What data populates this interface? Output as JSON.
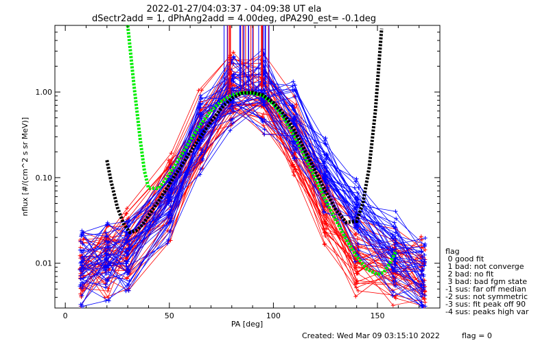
{
  "header": {
    "title": "2022-01-27/04:03:37 - 04:09:38 UT ela",
    "subtitle": "dSectr2add = 1, dPhAng2add = 4.00deg, dPA290_est=  -0.1deg"
  },
  "footer": {
    "created": "Created: Wed Mar 09 03:15:10 2022",
    "flag": "flag = 0"
  },
  "legend": {
    "title": "flag",
    "items": [
      " 0 good fit",
      " 1 bad: not converge",
      " 2 bad: no fit",
      " 3 bad: bad fgm state",
      "-1 sus: far off median",
      "-2 sus: not symmetric",
      "-3 sus: fit peak off 90",
      "-4 sus: peaks high var"
    ]
  },
  "colors": {
    "red": "#ff0000",
    "blue": "#0000ff",
    "green": "#00ee00",
    "black": "#000000"
  },
  "chart_data": {
    "type": "line",
    "title": "2022-01-27/04:03:37 - 04:09:38 UT ela",
    "xlabel": "PA [deg]",
    "ylabel": "nflux [#/(cm^2 s sr MeV)]",
    "xlim": [
      -5,
      180
    ],
    "ylim": [
      0.003,
      6.0
    ],
    "yscale": "log",
    "xticks": [
      0,
      50,
      100,
      150
    ],
    "xtick_labels": [
      "0",
      "50",
      "100",
      "150"
    ],
    "yticks": [
      0.01,
      0.1,
      1.0
    ],
    "ytick_labels": [
      "0.01",
      "0.10",
      "1.00"
    ],
    "series": [
      {
        "color": "green",
        "x": [
          30,
          33,
          36,
          38,
          40,
          45,
          50,
          55,
          60,
          65,
          70,
          75,
          80,
          85,
          90,
          95,
          100,
          105,
          110,
          115,
          120,
          125,
          130,
          135,
          140,
          145,
          150,
          153,
          156,
          159
        ],
        "y": [
          6.0,
          1.2,
          0.28,
          0.12,
          0.075,
          0.075,
          0.11,
          0.17,
          0.27,
          0.42,
          0.6,
          0.78,
          0.92,
          0.98,
          0.97,
          0.9,
          0.72,
          0.5,
          0.31,
          0.18,
          0.1,
          0.055,
          0.032,
          0.019,
          0.012,
          0.0085,
          0.0074,
          0.0078,
          0.01,
          0.014
        ]
      },
      {
        "color": "black",
        "x": [
          20,
          22,
          25,
          28,
          31,
          34,
          37,
          40,
          44,
          48,
          52,
          56,
          60,
          65,
          70,
          75,
          80,
          85,
          90,
          95,
          100,
          105,
          110,
          115,
          120,
          125,
          130,
          135,
          140,
          143,
          146,
          149,
          152
        ],
        "y": [
          0.16,
          0.09,
          0.045,
          0.029,
          0.023,
          0.024,
          0.028,
          0.036,
          0.05,
          0.07,
          0.1,
          0.14,
          0.2,
          0.3,
          0.45,
          0.65,
          0.85,
          0.97,
          0.99,
          0.92,
          0.75,
          0.55,
          0.36,
          0.21,
          0.12,
          0.07,
          0.042,
          0.03,
          0.031,
          0.05,
          0.13,
          0.6,
          5.5
        ]
      }
    ],
    "spectra": {
      "x": [
        8,
        20,
        30,
        50,
        65,
        80,
        95,
        110,
        125,
        140,
        158,
        172
      ],
      "blue_median": [
        0.008,
        0.01,
        0.012,
        0.05,
        0.3,
        0.95,
        0.95,
        0.4,
        0.1,
        0.03,
        0.012,
        0.006
      ],
      "red_median": [
        0.009,
        0.012,
        0.015,
        0.06,
        0.35,
        0.98,
        0.9,
        0.3,
        0.05,
        0.012,
        0.01,
        0.008
      ],
      "count_per_color": 40
    }
  }
}
